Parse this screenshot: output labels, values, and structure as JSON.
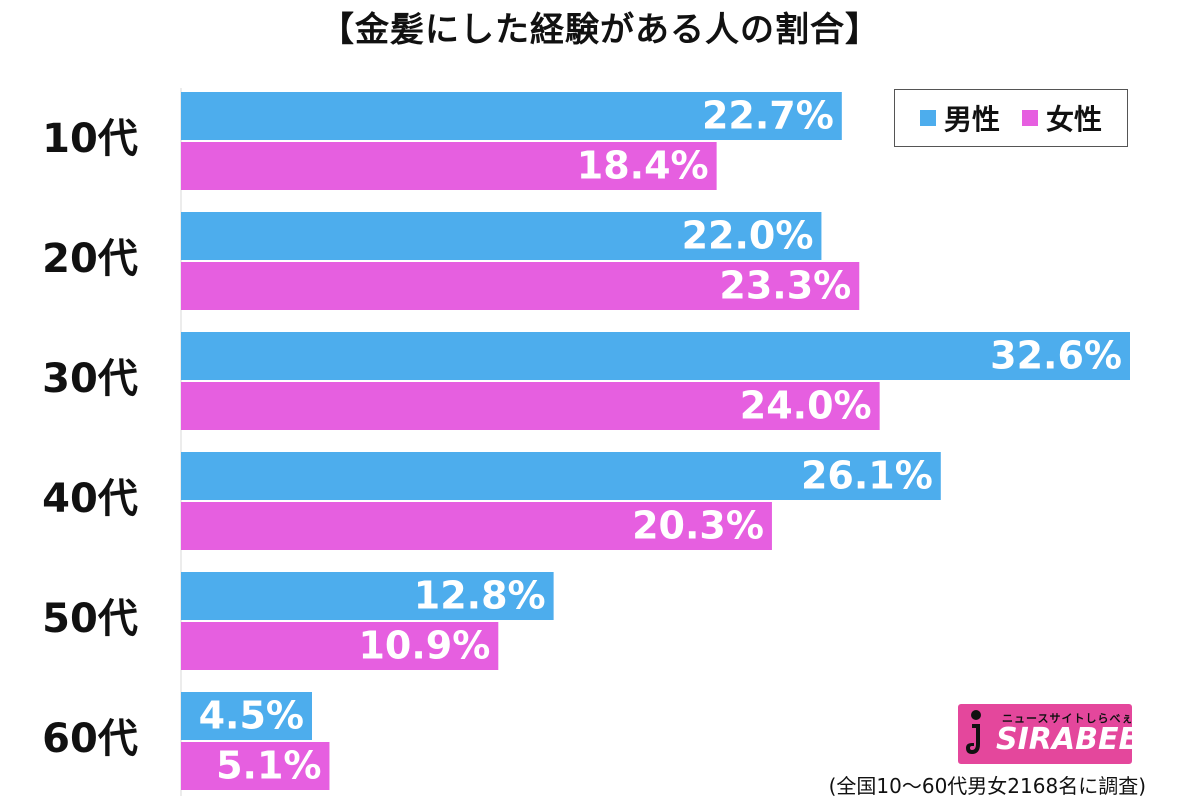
{
  "title": "【金髪にした経験がある人の割合】",
  "colors": {
    "male": "#4daded",
    "female": "#e65fe0",
    "axis": "#d8d8d8",
    "logo_bg": "#e4479c"
  },
  "legend": {
    "male_label": "男性",
    "female_label": "女性"
  },
  "logo": {
    "subtitle": "ニュースサイトしらべぇ",
    "name": "SIRABEE"
  },
  "footnote": "(全国10〜60代男女2168名に調査)",
  "chart_data": {
    "type": "bar",
    "orientation": "horizontal",
    "title": "【金髪にした経験がある人の割合】",
    "categories": [
      "10代",
      "20代",
      "30代",
      "40代",
      "50代",
      "60代"
    ],
    "series": [
      {
        "name": "男性",
        "values": [
          22.7,
          22.0,
          32.6,
          26.1,
          12.8,
          4.5
        ],
        "labels": [
          "22.7%",
          "22.0%",
          "32.6%",
          "26.1%",
          "12.8%",
          "4.5%"
        ]
      },
      {
        "name": "女性",
        "values": [
          18.4,
          23.3,
          24.0,
          20.3,
          10.9,
          5.1
        ],
        "labels": [
          "18.4%",
          "23.3%",
          "24.0%",
          "20.3%",
          "10.9%",
          "5.1%"
        ]
      }
    ],
    "xlim": [
      0,
      32.6
    ],
    "unit": "%",
    "legend_position": "top-right",
    "grid": false
  }
}
